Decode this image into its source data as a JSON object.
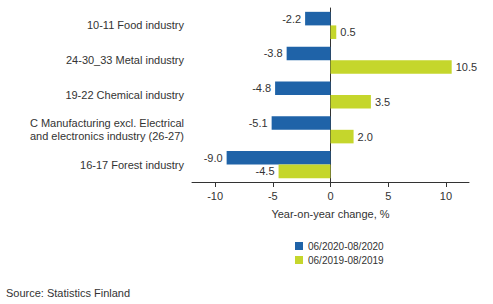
{
  "chart_data": {
    "type": "bar",
    "orientation": "horizontal",
    "categories": [
      "10-11 Food industry",
      "24-30_33 Metal industry",
      "19-22 Chemical industry",
      "C Manufacturing excl. Electrical\nand electronics industry (26-27)",
      "16-17 Forest industry"
    ],
    "series": [
      {
        "name": "06/2020-08/2020",
        "color": "#1f63a8",
        "values": [
          -2.2,
          -3.8,
          -4.8,
          -5.1,
          -9.0
        ],
        "value_labels": [
          "-2.2",
          "-3.8",
          "-4.8",
          "-5.1",
          "-9.0"
        ]
      },
      {
        "name": "06/2019-08/2019",
        "color": "#c5d62c",
        "values": [
          0.5,
          10.5,
          3.5,
          2.0,
          -4.5
        ],
        "value_labels": [
          "0.5",
          "10.5",
          "3.5",
          "2.0",
          "-4.5"
        ]
      }
    ],
    "xlabel": "Year-on-year change, %",
    "xlim": [
      -12,
      12
    ],
    "xticks": [
      -10,
      -5,
      0,
      5,
      10
    ],
    "grid": false,
    "data_labels": true,
    "legend": "bottom",
    "annotations": [
      "Source: Statistics Finland"
    ]
  }
}
